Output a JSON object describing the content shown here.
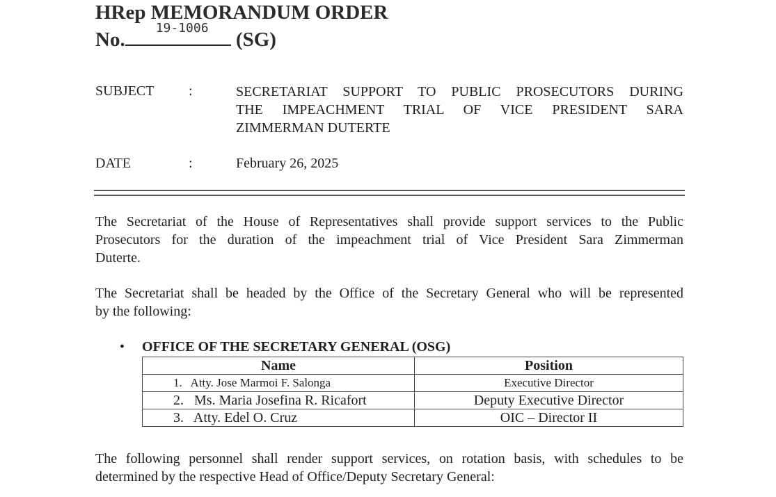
{
  "header": {
    "title": "HRep MEMORANDUM ORDER",
    "no_label": "No.",
    "no_value": "19-1006",
    "suffix": "(SG)"
  },
  "subject": {
    "label": "SUBJECT",
    "colon": ":",
    "lines": [
      "SECRETARIAT SUPPORT TO PUBLIC PROSECUTORS DURING",
      "THE IMPEACHMENT TRIAL OF VICE PRESIDENT SARA",
      "ZIMMERMAN DUTERTE"
    ]
  },
  "date": {
    "label": "DATE",
    "colon": ":",
    "value": "February 26, 2025"
  },
  "paragraphs": [
    [
      "The Secretariat of the House of Representatives shall provide support services to the Public",
      "Prosecutors for the duration of the impeachment trial of Vice President Sara Zimmerman",
      "Duterte."
    ],
    [
      "The Secretariat shall be headed by the Office of the Secretary General who will be represented",
      "by the following:"
    ],
    [
      "The following personnel shall render support services, on rotation basis, with schedules to be",
      "determined by the respective Head of Office/Deputy Secretary General:"
    ]
  ],
  "osg": {
    "bullet": "•",
    "heading": "OFFICE OF THE SECRETARY GENERAL (OSG)",
    "columns": [
      "Name",
      "Position"
    ],
    "rows": [
      {
        "name": "1.   Atty. Jose Marmoi F. Salonga",
        "position": "Executive Director"
      },
      {
        "name": "2.   Ms. Maria Josefina R. Ricafort",
        "position": "Deputy Executive Director"
      },
      {
        "name": "3.   Atty. Edel O. Cruz",
        "position": "OIC – Director II"
      }
    ]
  }
}
